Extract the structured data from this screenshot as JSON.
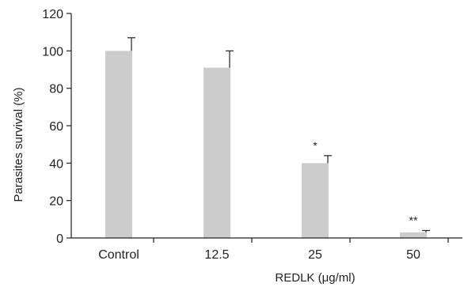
{
  "chart_data": {
    "type": "bar",
    "title": "",
    "xlabel": "REDLK (μg/ml)",
    "ylabel": "Parasites survival (%)",
    "ylim": [
      0,
      120
    ],
    "yticks": [
      0,
      20,
      40,
      60,
      80,
      100,
      120
    ],
    "categories": [
      "Control",
      "12.5",
      "25",
      "50"
    ],
    "values": [
      100,
      91,
      40,
      3
    ],
    "error_upper": [
      107,
      100,
      44,
      4
    ],
    "significance": [
      "",
      "",
      "*",
      "**"
    ],
    "bar_color": "#cccccc",
    "grid": false,
    "legend": "none"
  }
}
